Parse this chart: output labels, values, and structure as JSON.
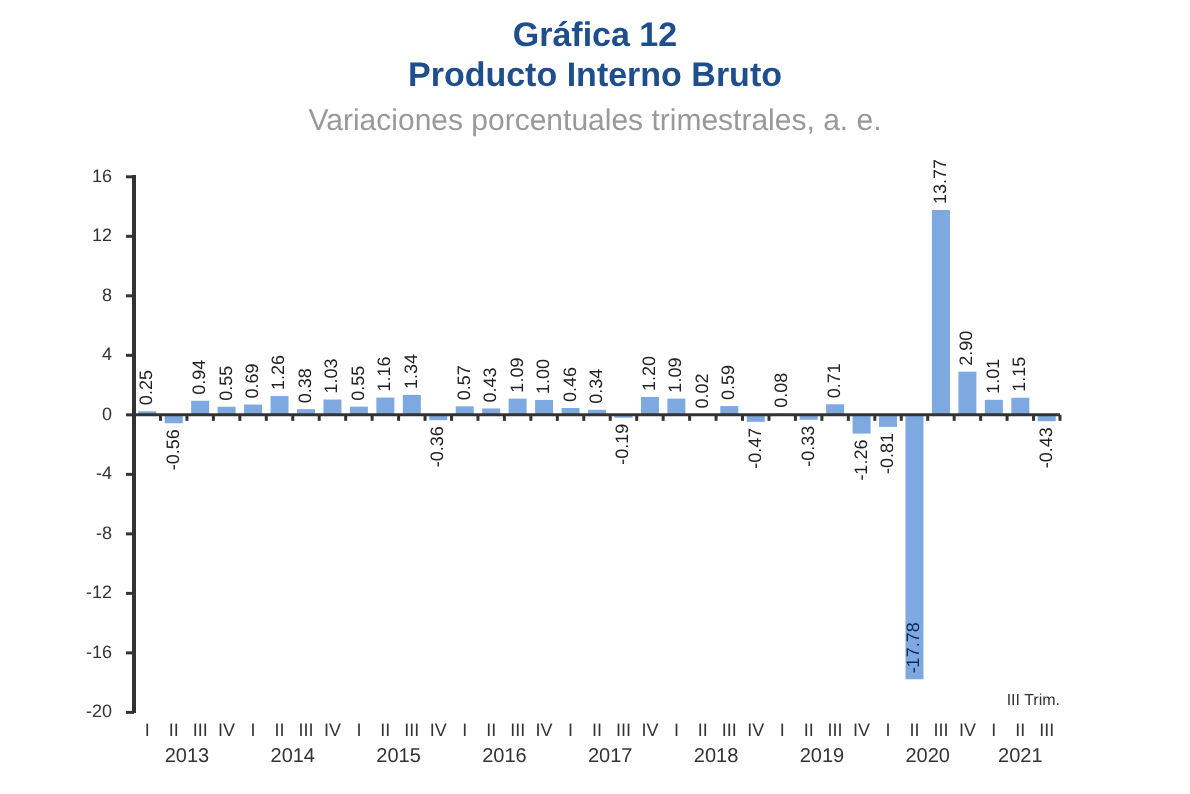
{
  "chart_data": {
    "type": "bar",
    "title": "Gráfica 12\nProducto Interno Bruto",
    "subtitle": "Variaciones porcentuales trimestrales, a. e.",
    "categories": [
      "I",
      "II",
      "III",
      "IV",
      "I",
      "II",
      "III",
      "IV",
      "I",
      "II",
      "III",
      "IV",
      "I",
      "II",
      "III",
      "IV",
      "I",
      "II",
      "III",
      "IV",
      "I",
      "II",
      "III",
      "IV",
      "I",
      "II",
      "III",
      "IV",
      "I",
      "II",
      "III",
      "IV",
      "I",
      "II",
      "III"
    ],
    "values": [
      0.25,
      -0.56,
      0.94,
      0.55,
      0.69,
      1.26,
      0.38,
      1.03,
      0.55,
      1.16,
      1.34,
      -0.36,
      0.57,
      0.43,
      1.09,
      1.0,
      0.46,
      0.34,
      -0.19,
      1.2,
      1.09,
      0.02,
      0.59,
      -0.47,
      0.08,
      -0.33,
      0.71,
      -1.26,
      -0.81,
      -17.78,
      13.77,
      2.9,
      1.01,
      1.15,
      -0.43
    ],
    "value_labels": [
      "0.25",
      "-0.56",
      "0.94",
      "0.55",
      "0.69",
      "1.26",
      "0.38",
      "1.03",
      "0.55",
      "1.16",
      "1.34",
      "-0.36",
      "0.57",
      "0.43",
      "1.09",
      "1.00",
      "0.46",
      "0.34",
      "-0.19",
      "1.20",
      "1.09",
      "0.02",
      "0.59",
      "-0.47",
      "0.08",
      "-0.33",
      "0.71",
      "-1.26",
      "-0.81",
      "-17.78",
      "13.77",
      "2.90",
      "1.01",
      "1.15",
      "-0.43"
    ],
    "color": "#7ea8e0",
    "ylim": [
      -20,
      16
    ],
    "yticks": [
      -20,
      -16,
      -12,
      -8,
      -4,
      0,
      4,
      8,
      12,
      16
    ],
    "annotations": [
      "2013",
      "2014",
      "2015",
      "2016",
      "2017",
      "2018",
      "2019",
      "2020",
      "2021",
      "III Trim."
    ]
  }
}
